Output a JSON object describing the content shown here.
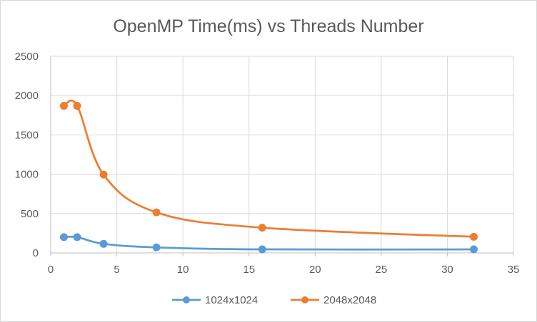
{
  "chart_data": {
    "type": "line",
    "title": "OpenMP Time(ms) vs Threads Number",
    "xlabel": "",
    "ylabel": "",
    "xlim": [
      0,
      35
    ],
    "ylim": [
      0,
      2500
    ],
    "x_ticks": [
      0,
      5,
      10,
      15,
      20,
      25,
      30,
      35
    ],
    "y_ticks": [
      0,
      500,
      1000,
      1500,
      2000,
      2500
    ],
    "grid": "vertical and horizontal",
    "legend_position": "bottom",
    "smooth": true,
    "series": [
      {
        "name": "1024x1024",
        "color": "#5b9bd5",
        "x": [
          1,
          2,
          4,
          8,
          16,
          32
        ],
        "values": [
          200,
          200,
          115,
          70,
          45,
          45
        ]
      },
      {
        "name": "2048x2048",
        "color": "#ed7d31",
        "x": [
          1,
          2,
          4,
          8,
          16,
          32
        ],
        "values": [
          1870,
          1870,
          995,
          515,
          320,
          205
        ]
      }
    ]
  }
}
